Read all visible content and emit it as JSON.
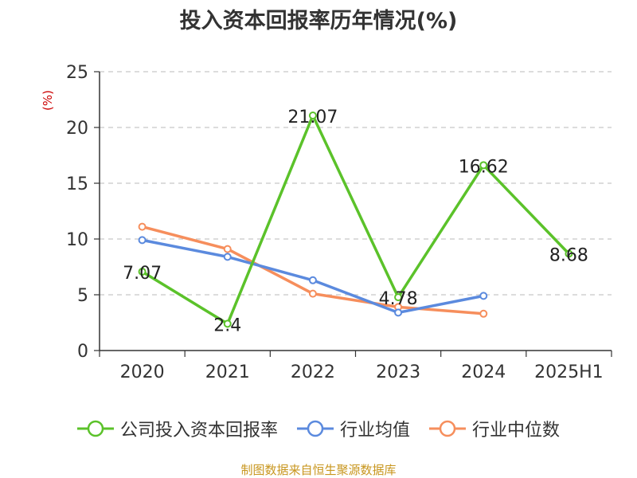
{
  "title": "投入资本回报率历年情况(%)",
  "source": "制图数据来自恒生聚源数据库",
  "chart_data": {
    "type": "line",
    "title": "投入资本回报率历年情况(%)",
    "ylabel": "(%)",
    "ylim": [
      0,
      25
    ],
    "yticks": [
      0,
      5,
      10,
      15,
      20,
      25
    ],
    "grid": true,
    "legend_position": "bottom",
    "categories": [
      "2020",
      "2021",
      "2022",
      "2023",
      "2024",
      "2025H1"
    ],
    "series": [
      {
        "name": "公司投入资本回报率",
        "color": "#5bc22a",
        "values": [
          7.07,
          2.4,
          21.07,
          4.78,
          16.62,
          8.68
        ],
        "show_labels": true
      },
      {
        "name": "行业均值",
        "color": "#5b8ade",
        "values": [
          9.9,
          8.4,
          6.3,
          3.4,
          4.9,
          null
        ],
        "show_labels": false
      },
      {
        "name": "行业中位数",
        "color": "#f68e5c",
        "values": [
          11.1,
          9.1,
          5.1,
          3.9,
          3.3,
          null
        ],
        "show_labels": false
      }
    ]
  }
}
